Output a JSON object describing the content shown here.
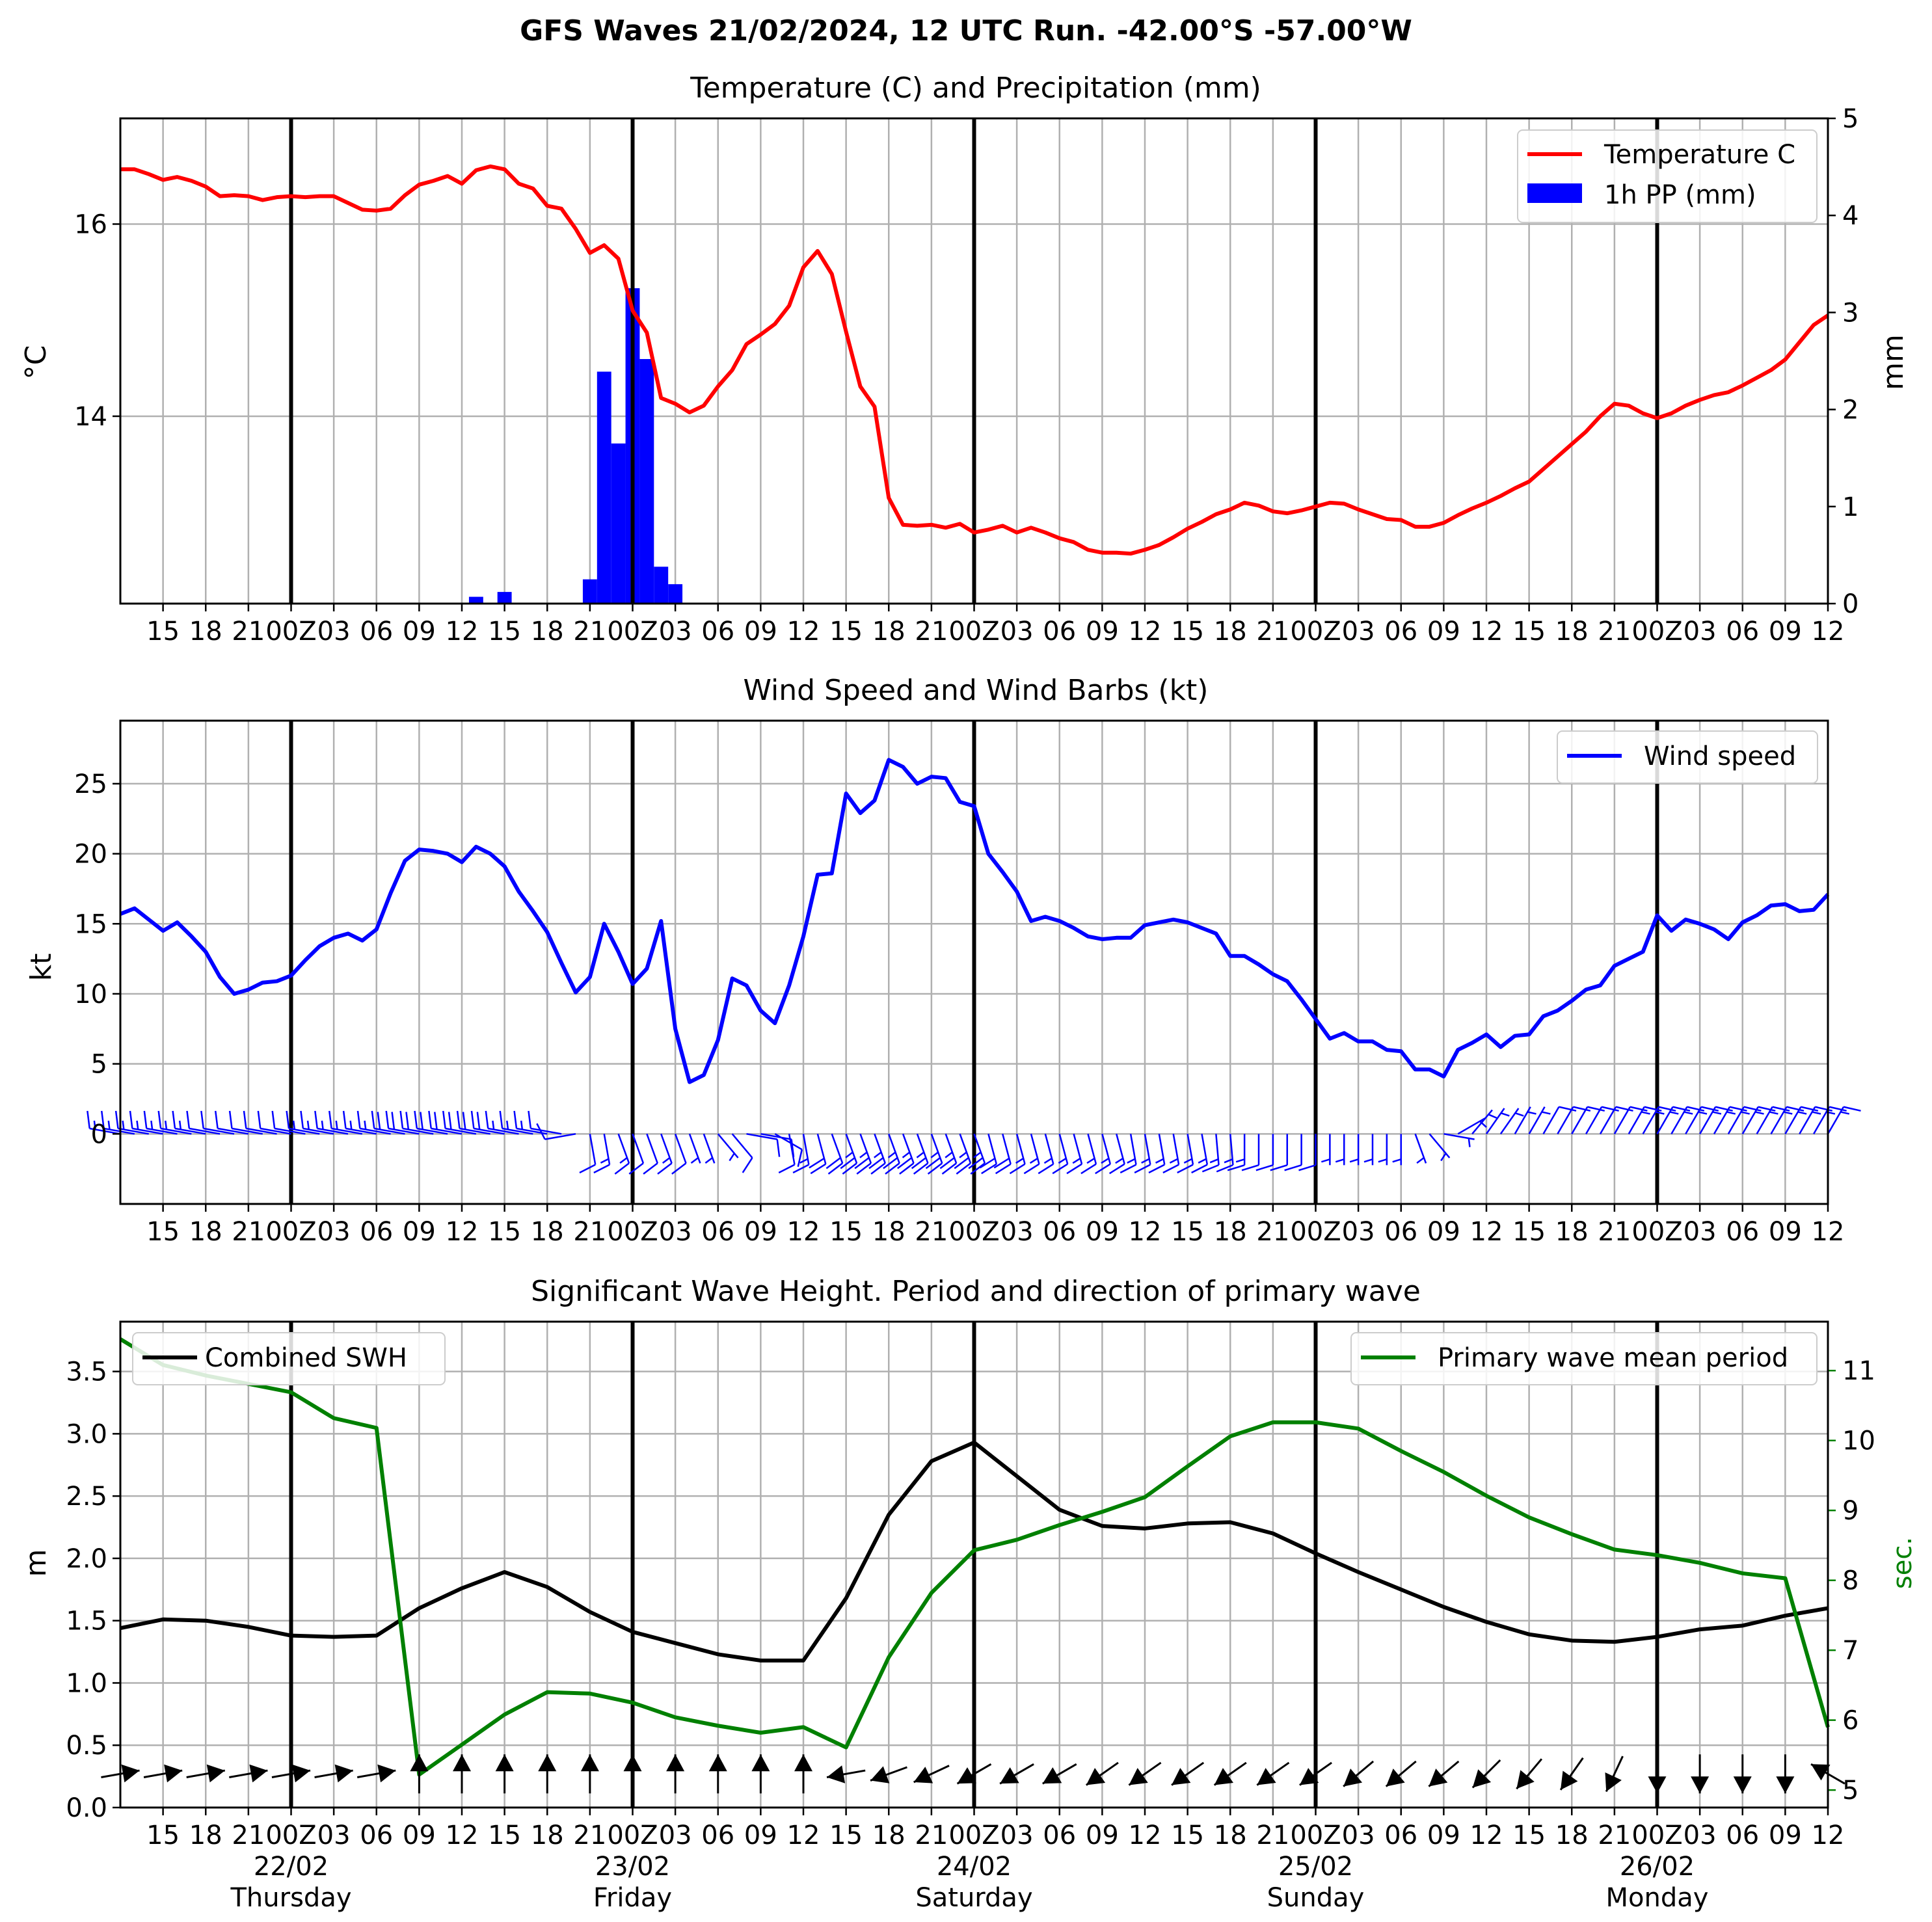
{
  "suptitle": "GFS Waves 21/02/2024, 12 UTC Run. -42.00°S -57.00°W",
  "colors": {
    "temperature": "#ff0000",
    "precip": "#0000ff",
    "wind": "#0000ff",
    "swh": "#000000",
    "period": "#008000",
    "grid": "#b0b0b0",
    "day_line": "#000000"
  },
  "time_axis": {
    "start_hour_label": "12",
    "step_hours": 3,
    "tick_labels": [
      "15",
      "18",
      "21",
      "00Z",
      "03",
      "06",
      "09",
      "12",
      "15",
      "18",
      "21",
      "00Z",
      "03",
      "06",
      "09",
      "12",
      "15",
      "18",
      "21",
      "00Z",
      "03",
      "06",
      "09",
      "12",
      "15",
      "18",
      "21",
      "00Z",
      "03",
      "06",
      "09",
      "12",
      "15",
      "18",
      "21",
      "00Z",
      "03",
      "06",
      "09",
      "12"
    ],
    "day_labels": [
      {
        "date": "22/02",
        "day": "Thursday"
      },
      {
        "date": "23/02",
        "day": "Friday"
      },
      {
        "date": "24/02",
        "day": "Saturday"
      },
      {
        "date": "25/02",
        "day": "Sunday"
      },
      {
        "date": "26/02",
        "day": "Monday"
      }
    ]
  },
  "chart_data": [
    {
      "type": "line",
      "title": "Temperature (C) and Precipitation (mm)",
      "ylabel": "$^\\circ$C",
      "ylabel_display": "°C",
      "ylabel2": "mm",
      "ylim": [
        12.05,
        17.1
      ],
      "yticks": [
        14,
        16
      ],
      "y2lim": [
        0,
        5
      ],
      "y2ticks": [
        0,
        1,
        2,
        3,
        4,
        5
      ],
      "legend": {
        "placement": "top-right",
        "entries": [
          "Temperature C",
          "1h PP (mm)"
        ]
      },
      "grid": true,
      "series": [
        {
          "name": "Temperature C",
          "x_hours": [
            0,
            1,
            2,
            3,
            4,
            5,
            6,
            7,
            8,
            9,
            10,
            11,
            12,
            13,
            14,
            15,
            16,
            17,
            18,
            19,
            20,
            21,
            22,
            23,
            24,
            25,
            26,
            27,
            28,
            29,
            30,
            31,
            32,
            33,
            34,
            35,
            36,
            37,
            38,
            39,
            40,
            41,
            42,
            43,
            44,
            45,
            46,
            47,
            48,
            49,
            50,
            51,
            52,
            53,
            54,
            55,
            56,
            57,
            58,
            59,
            60,
            61,
            62,
            63,
            64,
            65,
            66,
            67,
            68,
            69,
            70,
            71,
            72,
            73,
            74,
            75,
            76,
            77,
            78,
            79,
            80,
            81,
            82,
            83,
            84,
            85,
            86,
            87,
            88,
            89,
            90,
            91,
            92,
            93,
            94,
            95,
            96,
            97,
            98,
            99,
            100,
            101,
            102,
            103,
            104,
            105,
            106,
            107,
            108,
            109,
            110,
            111,
            112,
            113,
            114,
            115,
            116,
            117,
            118,
            119,
            120
          ],
          "values": [
            16.57,
            16.57,
            16.52,
            16.46,
            16.49,
            16.45,
            16.39,
            16.29,
            16.3,
            16.29,
            16.25,
            16.28,
            16.29,
            16.28,
            16.29,
            16.29,
            16.22,
            16.15,
            16.14,
            16.16,
            16.3,
            16.41,
            16.45,
            16.5,
            16.42,
            16.56,
            16.6,
            16.57,
            16.42,
            16.37,
            16.19,
            16.16,
            15.95,
            15.7,
            15.78,
            15.64,
            15.1,
            14.87,
            14.19,
            14.13,
            14.04,
            14.11,
            14.31,
            14.48,
            14.75,
            14.85,
            14.96,
            15.15,
            15.55,
            15.72,
            15.48,
            14.88,
            14.31,
            14.1,
            13.15,
            12.87,
            12.86,
            12.87,
            12.84,
            12.88,
            12.79,
            12.82,
            12.86,
            12.79,
            12.84,
            12.79,
            12.73,
            12.69,
            12.61,
            12.58,
            12.58,
            12.57,
            12.61,
            12.66,
            12.74,
            12.83,
            12.9,
            12.98,
            13.03,
            13.1,
            13.07,
            13.01,
            12.99,
            13.02,
            13.06,
            13.1,
            13.09,
            13.03,
            12.98,
            12.93,
            12.92,
            12.85,
            12.85,
            12.89,
            12.97,
            13.04,
            13.1,
            13.17,
            13.25,
            13.32,
            13.45,
            13.58,
            13.71,
            13.84,
            14.0,
            14.13,
            14.11,
            14.03,
            13.98,
            14.03,
            14.11,
            14.17,
            14.22,
            14.25,
            14.32,
            14.4,
            14.48,
            14.59,
            14.77,
            14.95,
            15.05
          ]
        },
        {
          "name": "1h PP (mm)",
          "type": "bar",
          "x_hours": [
            25,
            27,
            33,
            34,
            35,
            36,
            37,
            38,
            39,
            40
          ],
          "values": [
            0.07,
            0.12,
            0.25,
            2.39,
            1.65,
            3.25,
            2.52,
            0.38,
            0.2,
            0
          ]
        }
      ]
    },
    {
      "type": "line",
      "title": "Wind Speed and Wind Barbs (kt)",
      "ylabel": "kt",
      "ylim": [
        -5,
        29.5
      ],
      "yticks": [
        0,
        5,
        10,
        15,
        20,
        25
      ],
      "legend": {
        "placement": "top-right",
        "entries": [
          "Wind speed"
        ]
      },
      "grid": true,
      "series": [
        {
          "name": "Wind speed",
          "x_hours": [
            0,
            1,
            2,
            3,
            4,
            5,
            6,
            7,
            8,
            9,
            10,
            11,
            12,
            13,
            14,
            15,
            16,
            17,
            18,
            19,
            20,
            21,
            22,
            23,
            24,
            25,
            26,
            27,
            28,
            29,
            30,
            31,
            32,
            33,
            34,
            35,
            36,
            37,
            38,
            39,
            40,
            41,
            42,
            43,
            44,
            45,
            46,
            47,
            48,
            49,
            50,
            51,
            52,
            53,
            54,
            55,
            56,
            57,
            58,
            59,
            60,
            61,
            62,
            63,
            64,
            65,
            66,
            67,
            68,
            69,
            70,
            71,
            72,
            73,
            74,
            75,
            76,
            77,
            78,
            79,
            80,
            81,
            82,
            83,
            84,
            85,
            86,
            87,
            88,
            89,
            90,
            91,
            92,
            93,
            94,
            95,
            96,
            97,
            98,
            99,
            100,
            101,
            102,
            103,
            104,
            105,
            106,
            107,
            108,
            109,
            110,
            111,
            112,
            113,
            114,
            115,
            116,
            117,
            118,
            119,
            120
          ],
          "values": [
            15.7,
            16.1,
            15.3,
            14.5,
            15.1,
            14.1,
            13.0,
            11.2,
            10.0,
            10.3,
            10.8,
            10.9,
            11.3,
            12.4,
            13.4,
            14.0,
            14.3,
            13.8,
            14.6,
            17.2,
            19.5,
            20.3,
            20.2,
            20.0,
            19.4,
            20.5,
            20.0,
            19.1,
            17.3,
            15.9,
            14.4,
            12.2,
            10.1,
            11.2,
            15.0,
            13.0,
            10.7,
            11.8,
            15.2,
            7.5,
            3.7,
            4.2,
            6.7,
            11.1,
            10.6,
            8.8,
            7.9,
            10.6,
            14.1,
            18.5,
            18.6,
            24.3,
            22.9,
            23.8,
            26.7,
            26.2,
            25.0,
            25.5,
            25.4,
            23.7,
            23.4,
            20.0,
            18.7,
            17.3,
            15.2,
            15.5,
            15.2,
            14.7,
            14.1,
            13.9,
            14.0,
            14.0,
            14.9,
            15.1,
            15.3,
            15.1,
            14.7,
            14.3,
            12.7,
            12.7,
            12.1,
            11.4,
            10.9,
            9.6,
            8.2,
            6.8,
            7.2,
            6.6,
            6.6,
            6.0,
            5.9,
            4.6,
            4.6,
            4.1,
            6.0,
            6.5,
            7.1,
            6.2,
            7.0,
            7.1,
            8.4,
            8.8,
            9.5,
            10.3,
            10.6,
            12.0,
            12.5,
            13.0,
            15.6,
            14.5,
            15.3,
            15.0,
            14.6,
            13.9,
            15.1,
            15.6,
            16.3,
            16.4,
            15.9,
            16.0,
            17.1
          ]
        }
      ],
      "barb_direction_deg": [
        280,
        280,
        280,
        280,
        280,
        280,
        280,
        280,
        280,
        280,
        280,
        280,
        280,
        280,
        280,
        280,
        280,
        280,
        280,
        280,
        280,
        280,
        280,
        280,
        280,
        280,
        280,
        280,
        280,
        280,
        280,
        280,
        260,
        170,
        170,
        160,
        160,
        160,
        160,
        160,
        160,
        160,
        140,
        140,
        100,
        100,
        120,
        170,
        170,
        165,
        160,
        160,
        160,
        160,
        160,
        160,
        160,
        160,
        160,
        160,
        160,
        165,
        165,
        165,
        165,
        165,
        165,
        165,
        165,
        165,
        165,
        170,
        170,
        170,
        170,
        170,
        170,
        175,
        175,
        180,
        180,
        180,
        180,
        180,
        180,
        180,
        180,
        180,
        180,
        180,
        180,
        160,
        140,
        100,
        60,
        40,
        35,
        35,
        30,
        30,
        30,
        30,
        30,
        30,
        30,
        30,
        30,
        30,
        30,
        30,
        30,
        30,
        30,
        30,
        30,
        30,
        30,
        30,
        30,
        30,
        30
      ]
    },
    {
      "type": "line",
      "title": "Significant Wave Height. Period and direction of primary wave",
      "ylabel": "m",
      "ylim": [
        0,
        3.9
      ],
      "yticks": [
        0.0,
        0.5,
        1.0,
        1.5,
        2.0,
        2.5,
        3.0,
        3.5
      ],
      "ylabel2": "sec.",
      "y2lim": [
        4.75,
        11.7
      ],
      "y2ticks": [
        5,
        6,
        7,
        8,
        9,
        10,
        11
      ],
      "legend": [
        {
          "placement": "top-left",
          "entries": [
            "Combined SWH"
          ]
        },
        {
          "placement": "top-right",
          "entries": [
            "Primary wave mean period"
          ]
        }
      ],
      "grid": true,
      "series": [
        {
          "name": "Combined SWH",
          "x_hours": [
            0,
            3,
            6,
            9,
            12,
            15,
            18,
            21,
            24,
            27,
            30,
            33,
            36,
            39,
            42,
            45,
            48,
            51,
            54,
            57,
            60,
            63,
            66,
            69,
            72,
            75,
            78,
            81,
            84,
            87,
            90,
            93,
            96,
            99,
            102,
            105,
            108,
            111,
            114,
            117,
            120
          ],
          "values": [
            1.44,
            1.51,
            1.5,
            1.45,
            1.38,
            1.37,
            1.38,
            1.6,
            1.76,
            1.89,
            1.77,
            1.57,
            1.41,
            1.32,
            1.23,
            1.18,
            1.18,
            1.68,
            2.35,
            2.78,
            2.93,
            2.66,
            2.39,
            2.26,
            2.24,
            2.28,
            2.29,
            2.2,
            2.04,
            1.89,
            1.75,
            1.61,
            1.49,
            1.39,
            1.34,
            1.33,
            1.37,
            1.43,
            1.46,
            1.54,
            1.6
          ]
        },
        {
          "name": "Primary wave mean period",
          "x_hours": [
            0,
            3,
            6,
            9,
            12,
            15,
            18,
            21,
            24,
            27,
            30,
            33,
            36,
            39,
            42,
            45,
            48,
            51,
            54,
            57,
            60,
            63,
            66,
            69,
            72,
            75,
            78,
            81,
            84,
            87,
            90,
            93,
            96,
            99,
            102,
            105,
            108,
            111,
            114,
            117,
            120
          ],
          "values": [
            11.45,
            11.08,
            10.93,
            10.81,
            10.69,
            10.32,
            10.18,
            5.22,
            5.65,
            6.08,
            6.4,
            6.38,
            6.25,
            6.04,
            5.92,
            5.82,
            5.9,
            5.61,
            6.9,
            7.82,
            8.43,
            8.58,
            8.79,
            8.98,
            9.19,
            9.63,
            10.06,
            10.26,
            10.26,
            10.17,
            9.85,
            9.55,
            9.21,
            8.9,
            8.66,
            8.44,
            8.36,
            8.25,
            8.1,
            8.03,
            5.9
          ]
        }
      ],
      "wave_direction_deg": [
        80,
        80,
        80,
        80,
        80,
        80,
        80,
        0,
        0,
        0,
        0,
        0,
        0,
        0,
        0,
        0,
        0,
        260,
        250,
        245,
        240,
        240,
        240,
        235,
        235,
        235,
        235,
        235,
        235,
        230,
        230,
        230,
        225,
        220,
        215,
        205,
        180,
        180,
        180,
        180,
        300
      ]
    }
  ]
}
